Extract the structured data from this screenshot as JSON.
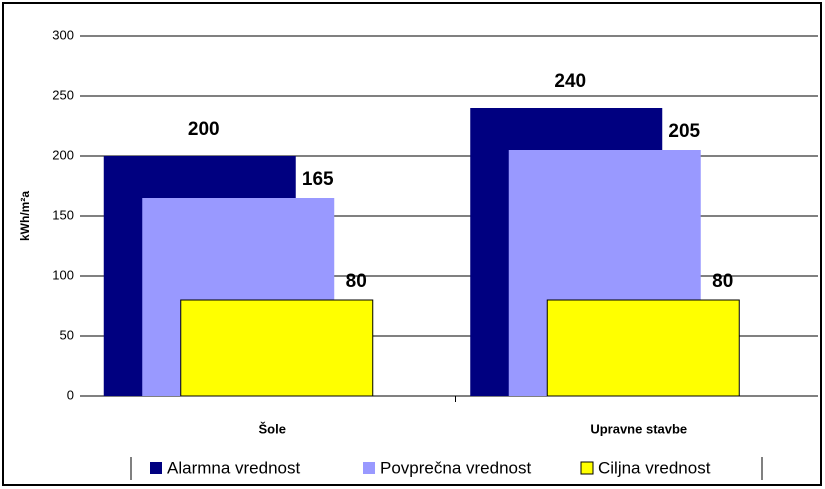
{
  "chart_data": {
    "type": "bar",
    "y_label": "kWh/m²a",
    "categories": [
      "Šole",
      "Upravne stavbe"
    ],
    "series": [
      {
        "name": "Alarmna vrednost",
        "color": "#000080",
        "values": [
          200,
          240
        ]
      },
      {
        "name": "Povprečna vrednost",
        "color": "#9999ff",
        "values": [
          165,
          205
        ]
      },
      {
        "name": "Ciljna vrednost",
        "color": "#ffff00",
        "values": [
          80,
          80
        ]
      }
    ],
    "ylim": [
      0,
      300
    ],
    "yticks": [
      0,
      50,
      100,
      150,
      200,
      250,
      300
    ],
    "grid": true
  }
}
